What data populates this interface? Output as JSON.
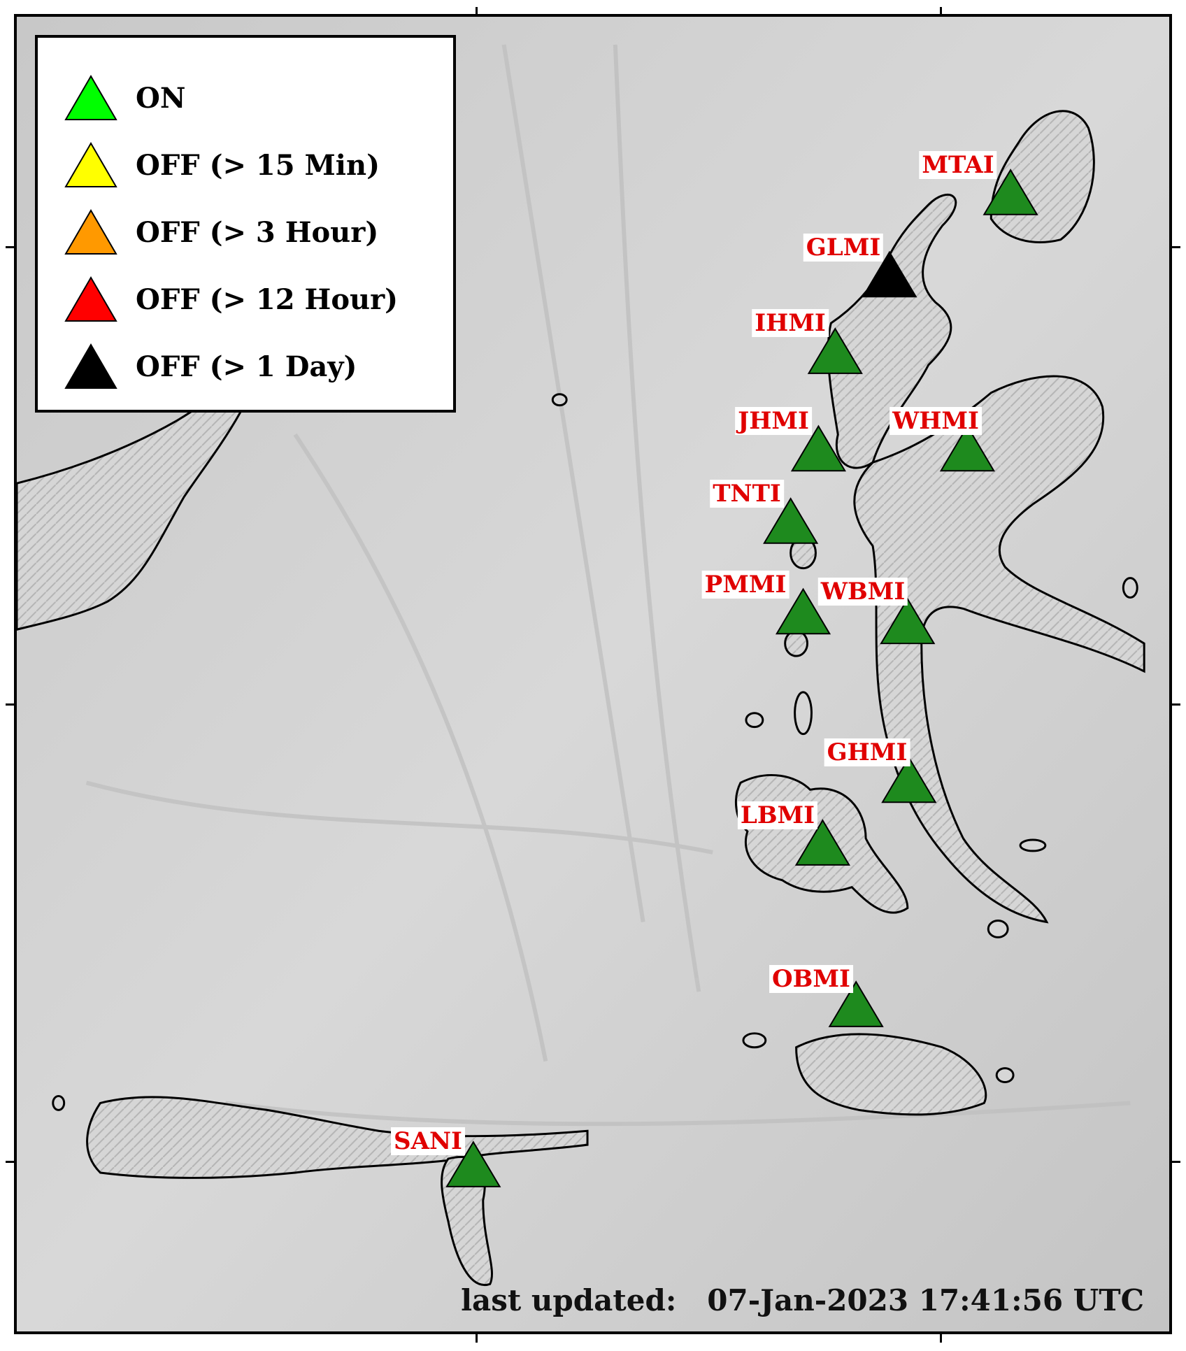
{
  "legend": [
    {
      "label": "ON",
      "color": "#00ff00"
    },
    {
      "label": "OFF (> 15 Min)",
      "color": "#ffff00"
    },
    {
      "label": "OFF (> 3 Hour)",
      "color": "#ff9900"
    },
    {
      "label": "OFF (> 12 Hour)",
      "color": "#ff0000"
    },
    {
      "label": "OFF (> 1 Day)",
      "color": "#000000"
    }
  ],
  "stations": [
    {
      "code": "MTAI",
      "status": "ON"
    },
    {
      "code": "GLMI",
      "status": "OFF (> 1 Day)"
    },
    {
      "code": "IHMI",
      "status": "ON"
    },
    {
      "code": "JHMI",
      "status": "ON"
    },
    {
      "code": "WHMI",
      "status": "ON"
    },
    {
      "code": "TNTI",
      "status": "ON"
    },
    {
      "code": "PMMI",
      "status": "ON"
    },
    {
      "code": "WBMI",
      "status": "ON"
    },
    {
      "code": "GHMI",
      "status": "ON"
    },
    {
      "code": "LBMI",
      "status": "ON"
    },
    {
      "code": "OBMI",
      "status": "ON"
    },
    {
      "code": "SANI",
      "status": "ON"
    }
  ],
  "marker_colors": {
    "ON": "#1e8a1e",
    "OFF (> 1 Day)": "#000000"
  },
  "footer": {
    "label": "last updated:",
    "timestamp": "07-Jan-2023 17:41:56 UTC"
  }
}
